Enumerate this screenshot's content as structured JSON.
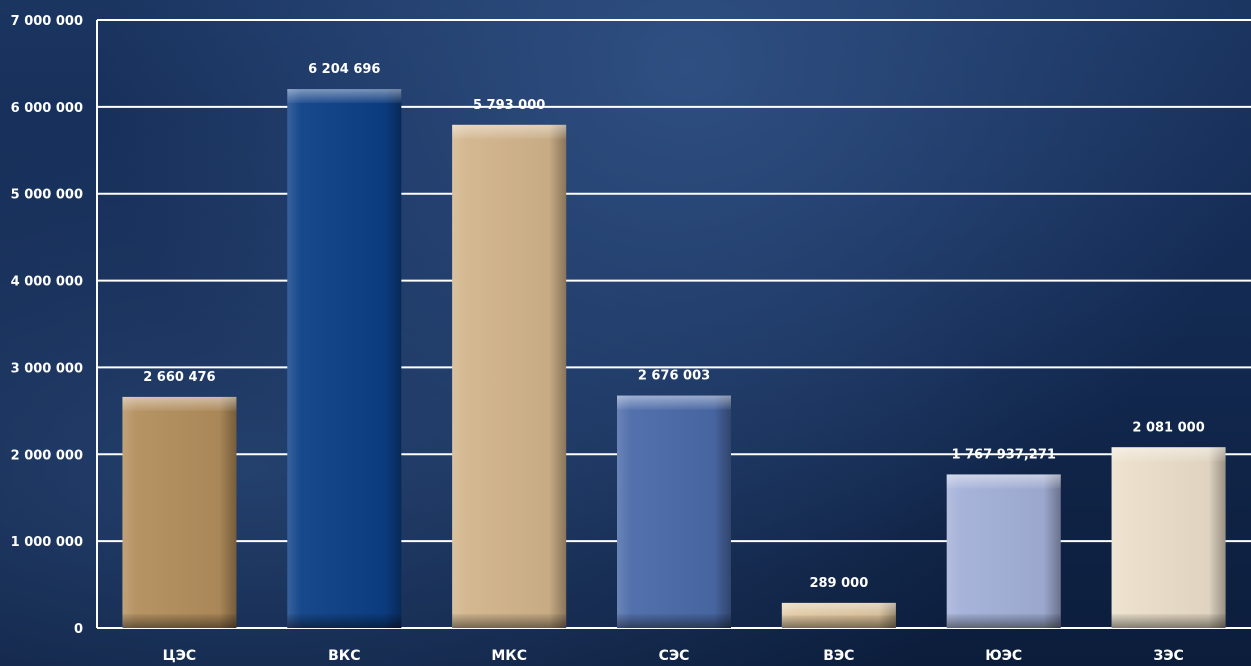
{
  "chart_data": {
    "type": "bar",
    "categories": [
      "ЦЭС",
      "ВКС",
      "МКС",
      "СЭС",
      "ВЭС",
      "ЮЭС",
      "ЗЭС"
    ],
    "values": [
      2660476,
      6204696,
      5793000,
      2676003,
      289000,
      1767937.271,
      2081000
    ],
    "data_labels": [
      "2 660 476",
      "6 204 696",
      "5 793 000",
      "2 676 003",
      "289 000",
      "1 767 937,271",
      "2 081 000"
    ],
    "bar_colors": [
      "#b38e5c",
      "#0c3f86",
      "#d2b48b",
      "#4a6aa8",
      "#ddc39a",
      "#a3b0d8",
      "#ebdfca"
    ],
    "ylim": [
      0,
      7000000
    ],
    "y_ticks": [
      0,
      1000000,
      2000000,
      3000000,
      4000000,
      5000000,
      6000000,
      7000000
    ],
    "y_tick_labels": [
      "0",
      "1 000 000",
      "2 000 000",
      "3 000 000",
      "4 000 000",
      "5 000 000",
      "6 000 000",
      "7 000 000"
    ],
    "grid": true,
    "title": "",
    "xlabel": "",
    "ylabel": ""
  }
}
